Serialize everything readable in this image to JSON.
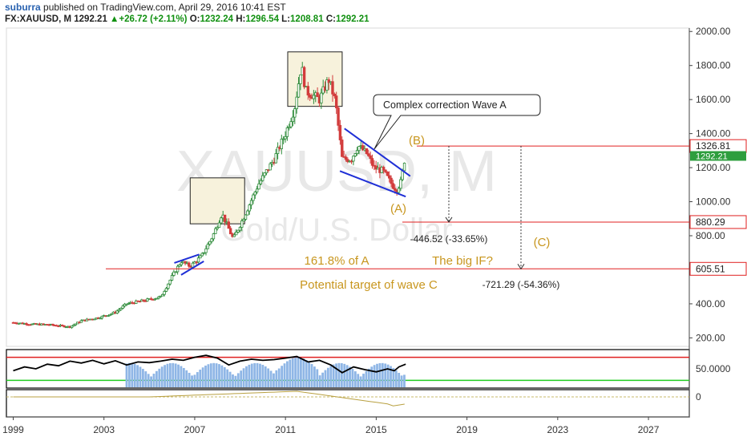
{
  "header": {
    "author": "suburra",
    "published": "published on TradingView.com, April 29, 2016 10:41 EST",
    "symbol": "FX:XAUUSD, M",
    "last": "1292.21",
    "change_arrow": "▲",
    "change": "+26.72 (+2.11%)",
    "open_label": "O:",
    "open": "1232.24",
    "high_label": "H:",
    "high": "1296.54",
    "low_label": "L:",
    "low": "1208.81",
    "close_label": "C:",
    "close": "1292.21"
  },
  "watermark": {
    "symbol": "XAUUSD, M",
    "description": "Gold/U.S. Dollar"
  },
  "chart_data": {
    "type": "candlestick",
    "x_ticks": [
      "1999",
      "2003",
      "2007",
      "2011",
      "2015",
      "2019",
      "2023",
      "2027"
    ],
    "x_range": [
      1998.7,
      2028.8
    ],
    "y_ticks": [
      "200.00",
      "400.00",
      "600.00",
      "800.00",
      "1000.00",
      "1200.00",
      "1400.00",
      "1600.00",
      "1800.00",
      "2000.00"
    ],
    "y_range": [
      150,
      2020
    ],
    "price_path": [
      [
        1999.0,
        290
      ],
      [
        1999.8,
        280
      ],
      [
        2000.5,
        278
      ],
      [
        2001.5,
        265
      ],
      [
        2002.0,
        300
      ],
      [
        2002.8,
        320
      ],
      [
        2003.5,
        350
      ],
      [
        2004.0,
        400
      ],
      [
        2004.8,
        420
      ],
      [
        2005.5,
        440
      ],
      [
        2006.0,
        560
      ],
      [
        2006.4,
        650
      ],
      [
        2006.8,
        620
      ],
      [
        2007.3,
        680
      ],
      [
        2007.8,
        800
      ],
      [
        2008.2,
        930
      ],
      [
        2008.7,
        780
      ],
      [
        2009.2,
        920
      ],
      [
        2009.8,
        1100
      ],
      [
        2010.5,
        1250
      ],
      [
        2011.0,
        1400
      ],
      [
        2011.4,
        1550
      ],
      [
        2011.7,
        1800
      ],
      [
        2011.9,
        1650
      ],
      [
        2012.5,
        1600
      ],
      [
        2012.9,
        1720
      ],
      [
        2013.2,
        1590
      ],
      [
        2013.5,
        1250
      ],
      [
        2013.9,
        1250
      ],
      [
        2014.2,
        1330
      ],
      [
        2014.6,
        1280
      ],
      [
        2014.9,
        1200
      ],
      [
        2015.3,
        1180
      ],
      [
        2015.7,
        1100
      ],
      [
        2015.9,
        1070
      ],
      [
        2016.1,
        1120
      ],
      [
        2016.3,
        1292
      ]
    ],
    "horizontal_levels": [
      {
        "value": 1326.81,
        "label": "1326.81"
      },
      {
        "value": 880.29,
        "label": "880.29"
      },
      {
        "value": 605.51,
        "label": "605.51"
      }
    ],
    "current_price_label": "1292.21",
    "annotations": {
      "callout": "Complex correction Wave A",
      "wave_b": "(B)",
      "wave_a": "(A)",
      "wave_c": "(C)",
      "fib": "161.8% of A",
      "big_if": "The big IF?",
      "target": "Potential target of wave C",
      "measure1": "-446.52 (-33.65%)",
      "measure2": "-721.29 (-54.36%)"
    },
    "boxes": [
      {
        "x": [
          2006.8,
          2009.2
        ],
        "y": [
          870,
          1140
        ]
      },
      {
        "x": [
          2011.1,
          2013.5
        ],
        "y": [
          1560,
          1880
        ]
      }
    ],
    "indicator": {
      "y_ticks": [
        "50.0000"
      ],
      "y_range": [
        0,
        100
      ],
      "upper_band": 80,
      "lower_band": 20,
      "line": [
        [
          1999.0,
          45
        ],
        [
          1999.5,
          55
        ],
        [
          2000.0,
          50
        ],
        [
          2000.5,
          62
        ],
        [
          2001.0,
          58
        ],
        [
          2001.5,
          70
        ],
        [
          2002.0,
          65
        ],
        [
          2002.5,
          72
        ],
        [
          2003.0,
          63
        ],
        [
          2003.5,
          71
        ],
        [
          2004.0,
          60
        ],
        [
          2004.5,
          68
        ],
        [
          2005.0,
          66
        ],
        [
          2005.5,
          70
        ],
        [
          2006.0,
          75
        ],
        [
          2006.5,
          72
        ],
        [
          2007.0,
          80
        ],
        [
          2007.5,
          85
        ],
        [
          2008.0,
          78
        ],
        [
          2008.5,
          60
        ],
        [
          2009.0,
          70
        ],
        [
          2009.5,
          75
        ],
        [
          2010.0,
          72
        ],
        [
          2010.5,
          74
        ],
        [
          2011.0,
          78
        ],
        [
          2011.5,
          82
        ],
        [
          2012.0,
          68
        ],
        [
          2012.5,
          72
        ],
        [
          2013.0,
          60
        ],
        [
          2013.5,
          40
        ],
        [
          2014.0,
          55
        ],
        [
          2014.5,
          48
        ],
        [
          2015.0,
          42
        ],
        [
          2015.5,
          50
        ],
        [
          2015.8,
          45
        ],
        [
          2016.0,
          55
        ],
        [
          2016.3,
          62
        ]
      ]
    },
    "oscillator": {
      "y_ticks": [
        "0"
      ]
    }
  }
}
